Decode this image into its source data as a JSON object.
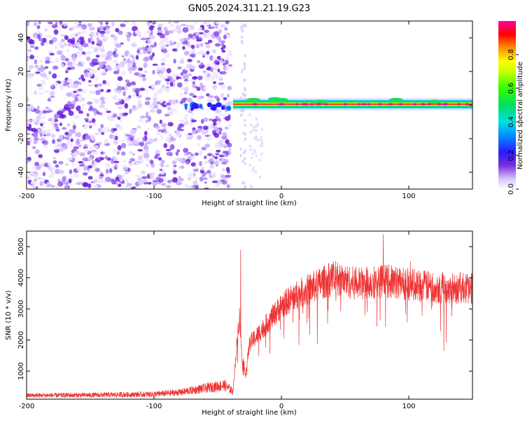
{
  "title": "GN05.2024.311.21.19.G23",
  "chart_data": [
    {
      "type": "heatmap",
      "title": "GN05.2024.311.21.19.G23",
      "xlabel": "Height of straight line (km)",
      "ylabel": "Frequency (Hz)",
      "xlim": [
        -200,
        150
      ],
      "ylim": [
        -50,
        50
      ],
      "x_ticks": [
        -200,
        -100,
        0,
        100
      ],
      "x_tick_labels": [
        "-200",
        "-100",
        "0",
        "100"
      ],
      "y_ticks": [
        -40,
        -20,
        0,
        20,
        40
      ],
      "y_tick_labels": [
        "-40",
        "-20",
        "0",
        "20",
        "40"
      ],
      "grid": false,
      "description_regions": [
        {
          "x_range": [
            -200,
            -40
          ],
          "kind": "noise",
          "amplitude": 0.15
        },
        {
          "x_range": [
            -75,
            -38
          ],
          "kind": "weak_signal",
          "freq": -1,
          "amplitude": 0.3
        },
        {
          "x_range": [
            -38,
            150
          ],
          "kind": "strong_signal",
          "freq": 0.5,
          "amplitude": 0.9
        }
      ],
      "colorbar": {
        "label": "Normalized spectral amplitude",
        "range": [
          0,
          1
        ],
        "ticks": [
          0.0,
          0.2,
          0.4,
          0.6,
          0.8
        ],
        "tick_labels": [
          "0.0",
          "0.2",
          "0.4",
          "0.6",
          "0.8"
        ]
      }
    },
    {
      "type": "line",
      "xlabel": "Height of straight line (km)",
      "ylabel": "SNR (10 * v/v)",
      "xlim": [
        -200,
        150
      ],
      "ylim": [
        100,
        5500
      ],
      "x_ticks": [
        -200,
        -100,
        0,
        100
      ],
      "x_tick_labels": [
        "-200",
        "-100",
        "0",
        "100"
      ],
      "y_ticks": [
        1000,
        2000,
        3000,
        4000,
        5000
      ],
      "y_tick_labels": [
        "1000",
        "2000",
        "3000",
        "4000",
        "5000"
      ],
      "grid": false,
      "color": "#ee3333",
      "envelope": {
        "x": [
          -200,
          -150,
          -100,
          -80,
          -60,
          -45,
          -38,
          -33,
          -31,
          -28,
          -25,
          -20,
          -10,
          0,
          10,
          20,
          30,
          40,
          60,
          80,
          100,
          120,
          150
        ],
        "y": [
          220,
          230,
          260,
          320,
          450,
          550,
          350,
          2800,
          1500,
          900,
          1900,
          2100,
          2600,
          3100,
          3400,
          3600,
          3800,
          4000,
          3800,
          3900,
          3800,
          3700,
          3650
        ]
      },
      "peaks": [
        {
          "x": -32,
          "y": 4900
        },
        {
          "x": 80,
          "y": 5400
        }
      ]
    }
  ]
}
